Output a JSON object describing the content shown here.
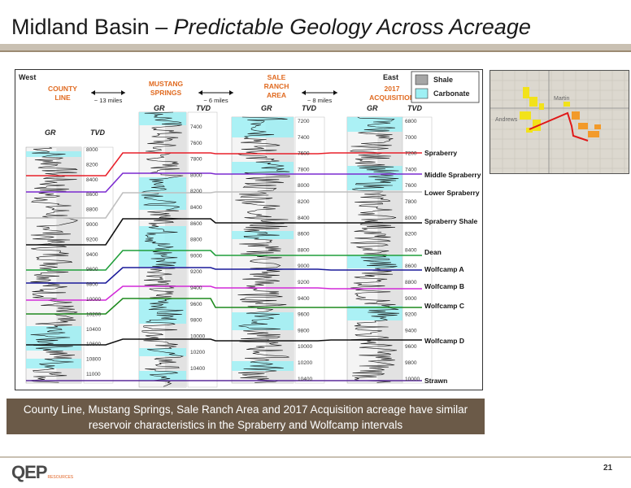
{
  "title": {
    "main": "Midland Basin – ",
    "italic": "Predictable Geology Across Acreage"
  },
  "direction": {
    "west": "West",
    "east": "East"
  },
  "legend": {
    "shale": "Shale",
    "carbonate": "Carbonate",
    "shale_color": "#a6a6a6",
    "carbonate_color": "#9ef0f4"
  },
  "wells": [
    {
      "name_lines": [
        "COUNTY",
        "LINE"
      ],
      "gr": "GR",
      "tvd": "TVD",
      "depths": [
        "8000",
        "8200",
        "8400",
        "8600",
        "8800",
        "9000",
        "9200",
        "9400",
        "9600",
        "9800",
        "10000",
        "10200",
        "10400",
        "10600",
        "10800",
        "11000"
      ]
    },
    {
      "name_lines": [
        "MUSTANG",
        "SPRINGS"
      ],
      "gr": "GR",
      "tvd": "TVD",
      "depths": [
        "7400",
        "7600",
        "7800",
        "8000",
        "8200",
        "8400",
        "8600",
        "8800",
        "9000",
        "9200",
        "9400",
        "9600",
        "9800",
        "10000",
        "10200",
        "10400",
        "10600",
        "10800"
      ]
    },
    {
      "name_lines": [
        "SALE",
        "RANCH",
        "AREA"
      ],
      "gr": "GR",
      "tvd": "TVD",
      "depths": [
        "7200",
        "7400",
        "7600",
        "7800",
        "8000",
        "8200",
        "8400",
        "8600",
        "8800",
        "9000",
        "9200",
        "9400",
        "9600",
        "9800",
        "10000",
        "10200",
        "10400",
        "10600"
      ]
    },
    {
      "name_lines": [
        "2017",
        "ACQUISITION"
      ],
      "gr": "GR",
      "tvd": "TVD",
      "depths": [
        "6800",
        "7000",
        "7200",
        "7400",
        "7600",
        "7800",
        "8000",
        "8200",
        "8400",
        "8600",
        "8800",
        "9000",
        "9200",
        "9400",
        "9600",
        "9800",
        "10000",
        "10200"
      ]
    }
  ],
  "distances": [
    "~ 13 miles",
    "~ 6 miles",
    "~ 8 miles"
  ],
  "horizons": [
    {
      "name": "Spraberry",
      "color": "#e8202a"
    },
    {
      "name": "Middle Spraberry",
      "color": "#7b2ad0"
    },
    {
      "name": "Lower Spraberry",
      "color": "#bfbfbf"
    },
    {
      "name": "Spraberry Shale",
      "color": "#111111"
    },
    {
      "name": "Dean",
      "color": "#1f9e3a"
    },
    {
      "name": "Wolfcamp A",
      "color": "#1a1a9a"
    },
    {
      "name": "Wolfcamp B",
      "color": "#d22ad8"
    },
    {
      "name": "Wolfcamp C",
      "color": "#1e8a1e"
    },
    {
      "name": "Wolfcamp D",
      "color": "#111111"
    },
    {
      "name": "Strawn",
      "color": "#5a2a9a"
    }
  ],
  "map": {
    "label_martin": "Martin",
    "label_andrews": "Andrews"
  },
  "caption": {
    "line1": "County Line, Mustang Springs, Sale Ranch Area and 2017 Acquisition acreage have similar",
    "line2": "reservoir characteristics in the Spraberry and Wolfcamp intervals"
  },
  "logo": {
    "text": "QEP",
    "sub": "RESOURCES"
  },
  "page_number": "21"
}
